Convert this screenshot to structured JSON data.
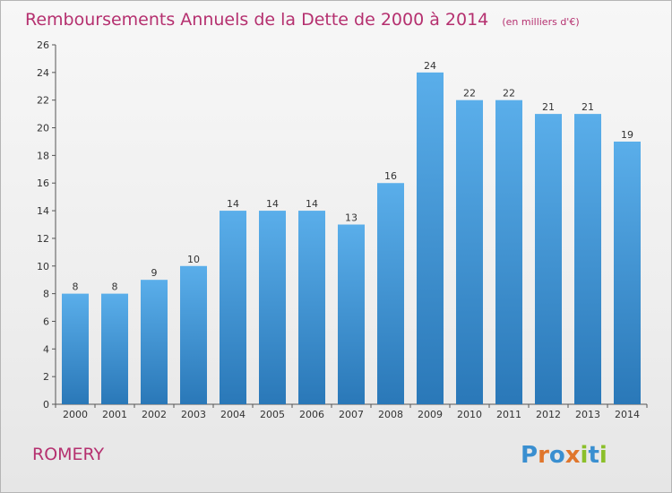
{
  "chart_data": {
    "type": "bar",
    "title": "Remboursements Annuels de la Dette de 2000 à 2014",
    "unit_note": "(en milliers d'€)",
    "categories": [
      "2000",
      "2001",
      "2002",
      "2003",
      "2004",
      "2005",
      "2006",
      "2007",
      "2008",
      "2009",
      "2010",
      "2011",
      "2012",
      "2013",
      "2014"
    ],
    "values": [
      8,
      8,
      9,
      10,
      14,
      14,
      14,
      13,
      16,
      24,
      22,
      22,
      21,
      21,
      19
    ],
    "ylim": [
      0,
      26
    ],
    "yticks": [
      0,
      2,
      4,
      6,
      8,
      10,
      12,
      14,
      16,
      18,
      20,
      22,
      24,
      26
    ],
    "grid": false,
    "bar_color_top": "#5aaeea",
    "bar_color_bottom": "#2a78b8",
    "title_color": "#b5306f"
  },
  "footer": {
    "commune": "ROMERY",
    "logo": "Proxiti"
  }
}
